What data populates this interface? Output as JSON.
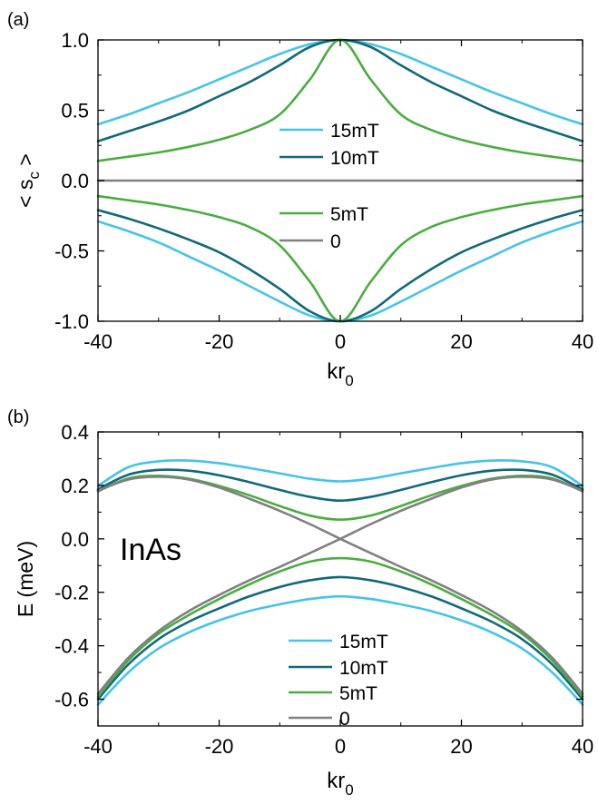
{
  "chart_data": [
    {
      "panel_label": "(a)",
      "type": "line",
      "xlabel": "kr",
      "xlabel_sub": "0",
      "ylabel": "< s",
      "ylabel_sub": "c",
      "ylabel_tail": " >",
      "xlim": [
        -40,
        40
      ],
      "ylim": [
        -1.0,
        1.0
      ],
      "xticks": [
        -40,
        -20,
        0,
        20,
        40
      ],
      "xtick_labels": [
        "-40",
        "-20",
        "0",
        "20",
        "40"
      ],
      "yticks": [
        1.0,
        0.5,
        0.0,
        -0.5,
        -1.0
      ],
      "ytick_labels": [
        "1.0",
        "0.5",
        "0.0",
        "-0.5",
        "-1.0"
      ],
      "grid": false,
      "legend_entries": [
        "15mT",
        "10mT",
        "5mT",
        "0"
      ],
      "x": [
        -40,
        -35,
        -30,
        -25,
        -20,
        -15,
        -10,
        -5,
        0,
        5,
        10,
        15,
        20,
        25,
        30,
        35,
        40
      ],
      "series": [
        {
          "name": "15mT",
          "color": "#45c3ea",
          "values": [
            0.4,
            0.47,
            0.55,
            0.63,
            0.72,
            0.81,
            0.9,
            0.97,
            1.0,
            0.97,
            0.9,
            0.81,
            0.72,
            0.63,
            0.55,
            0.47,
            0.4
          ],
          "mirror_values": [
            -0.29,
            -0.36,
            -0.44,
            -0.54,
            -0.64,
            -0.75,
            -0.86,
            -0.96,
            -1.0,
            -0.96,
            -0.86,
            -0.75,
            -0.64,
            -0.54,
            -0.44,
            -0.36,
            -0.29
          ]
        },
        {
          "name": "10mT",
          "color": "#10697a",
          "values": [
            0.28,
            0.35,
            0.42,
            0.5,
            0.6,
            0.7,
            0.82,
            0.95,
            1.0,
            0.95,
            0.82,
            0.7,
            0.6,
            0.5,
            0.42,
            0.35,
            0.28
          ],
          "mirror_values": [
            -0.21,
            -0.27,
            -0.34,
            -0.42,
            -0.51,
            -0.63,
            -0.77,
            -0.93,
            -1.0,
            -0.93,
            -0.77,
            -0.63,
            -0.51,
            -0.42,
            -0.34,
            -0.27,
            -0.21
          ]
        },
        {
          "name": "5mT",
          "color": "#4aad3f",
          "values": [
            0.14,
            0.17,
            0.2,
            0.24,
            0.29,
            0.36,
            0.47,
            0.72,
            1.0,
            0.72,
            0.47,
            0.36,
            0.29,
            0.24,
            0.2,
            0.17,
            0.14
          ],
          "mirror_values": [
            -0.11,
            -0.14,
            -0.17,
            -0.21,
            -0.26,
            -0.33,
            -0.46,
            -0.72,
            -1.0,
            -0.72,
            -0.46,
            -0.33,
            -0.26,
            -0.21,
            -0.17,
            -0.14,
            -0.11
          ]
        },
        {
          "name": "0",
          "color": "#808080",
          "values": [
            0,
            0,
            0,
            0,
            0,
            0,
            0,
            0,
            0,
            0,
            0,
            0,
            0,
            0,
            0,
            0,
            0
          ]
        }
      ]
    },
    {
      "panel_label": "(b)",
      "type": "line",
      "xlabel": "kr",
      "xlabel_sub": "0",
      "ylabel": "E (meV)",
      "annotation": "InAs",
      "xlim": [
        -40,
        40
      ],
      "ylim": [
        -0.7,
        0.4
      ],
      "xticks": [
        -40,
        -20,
        0,
        20,
        40
      ],
      "xtick_labels": [
        "-40",
        "-20",
        "0",
        "20",
        "40"
      ],
      "yticks": [
        0.4,
        0.2,
        0.0,
        -0.2,
        -0.4,
        -0.6
      ],
      "ytick_labels": [
        "0.4",
        "0.2",
        "0.0",
        "-0.2",
        "-0.4",
        "-0.6"
      ],
      "grid": false,
      "legend_entries": [
        "15mT",
        "10mT",
        "5mT",
        "0"
      ],
      "x": [
        -40,
        -35,
        -30,
        -25,
        -20,
        -15,
        -10,
        -5,
        0,
        5,
        10,
        15,
        20,
        25,
        30,
        35,
        40
      ],
      "series": [
        {
          "name": "15mT",
          "color": "#45c3ea",
          "values": [
            0.198,
            0.268,
            0.29,
            0.293,
            0.283,
            0.265,
            0.245,
            0.225,
            0.215,
            0.225,
            0.245,
            0.265,
            0.283,
            0.293,
            0.29,
            0.268,
            0.198
          ],
          "lower_values": [
            -0.62,
            -0.5,
            -0.41,
            -0.35,
            -0.305,
            -0.27,
            -0.245,
            -0.225,
            -0.215,
            -0.225,
            -0.245,
            -0.27,
            -0.305,
            -0.35,
            -0.41,
            -0.5,
            -0.62
          ]
        },
        {
          "name": "10mT",
          "color": "#10697a",
          "values": [
            0.185,
            0.24,
            0.258,
            0.255,
            0.238,
            0.212,
            0.183,
            0.157,
            0.143,
            0.157,
            0.183,
            0.212,
            0.238,
            0.255,
            0.258,
            0.24,
            0.185
          ],
          "lower_values": [
            -0.6,
            -0.47,
            -0.375,
            -0.31,
            -0.26,
            -0.215,
            -0.18,
            -0.155,
            -0.143,
            -0.155,
            -0.18,
            -0.215,
            -0.26,
            -0.31,
            -0.375,
            -0.47,
            -0.6
          ]
        },
        {
          "name": "5mT",
          "color": "#4aad3f",
          "values": [
            0.178,
            0.226,
            0.236,
            0.225,
            0.198,
            0.163,
            0.123,
            0.087,
            0.072,
            0.087,
            0.123,
            0.163,
            0.198,
            0.225,
            0.236,
            0.226,
            0.178
          ],
          "lower_values": [
            -0.59,
            -0.455,
            -0.355,
            -0.285,
            -0.225,
            -0.17,
            -0.122,
            -0.085,
            -0.072,
            -0.085,
            -0.122,
            -0.17,
            -0.225,
            -0.285,
            -0.355,
            -0.455,
            -0.59
          ]
        },
        {
          "name": "0",
          "color": "#808080",
          "values": [
            -0.58,
            -0.445,
            -0.345,
            -0.27,
            -0.21,
            -0.155,
            -0.105,
            -0.053,
            0.0,
            0.055,
            0.105,
            0.15,
            0.192,
            0.222,
            0.232,
            0.222,
            0.18
          ],
          "lower_values": [
            0.18,
            0.222,
            0.232,
            0.222,
            0.192,
            0.15,
            0.105,
            0.055,
            0.0,
            -0.053,
            -0.105,
            -0.155,
            -0.21,
            -0.27,
            -0.345,
            -0.445,
            -0.58
          ]
        }
      ]
    }
  ]
}
